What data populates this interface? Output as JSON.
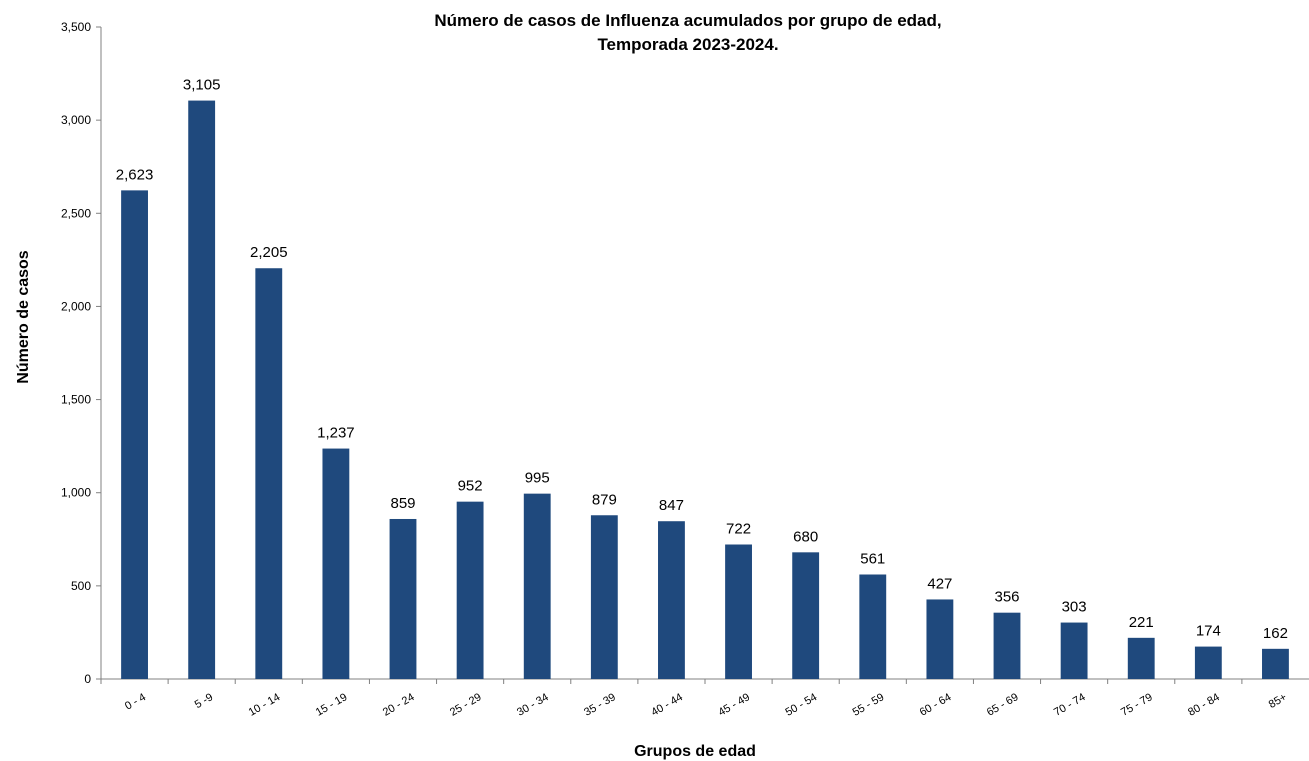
{
  "chart_data": {
    "type": "bar",
    "title": [
      "Número de casos de Influenza acumulados por grupo de edad,",
      "Temporada 2023-2024."
    ],
    "xlabel": "Grupos de edad",
    "ylabel": "Número de casos",
    "ylim": [
      0,
      3500
    ],
    "yticks": [
      0,
      500,
      1000,
      1500,
      2000,
      2500,
      3000,
      3500
    ],
    "ytick_labels": [
      "0",
      "500",
      "1,000",
      "1,500",
      "2,000",
      "2,500",
      "3,000",
      "3,500"
    ],
    "categories": [
      "0 - 4",
      "5 -9",
      "10 - 14",
      "15 - 19",
      "20 - 24",
      "25 - 29",
      "30 - 34",
      "35 - 39",
      "40 - 44",
      "45 - 49",
      "50 - 54",
      "55 - 59",
      "60 - 64",
      "65 - 69",
      "70 - 74",
      "75 - 79",
      "80 - 84",
      "85+"
    ],
    "values": [
      2623,
      3105,
      2205,
      1237,
      859,
      952,
      995,
      879,
      847,
      722,
      680,
      561,
      427,
      356,
      303,
      221,
      174,
      162
    ],
    "value_labels": [
      "2,623",
      "3,105",
      "2,205",
      "1,237",
      "859",
      "952",
      "995",
      "879",
      "847",
      "722",
      "680",
      "561",
      "427",
      "356",
      "303",
      "221",
      "174",
      "162"
    ],
    "bar_color": "#1F497D",
    "grid": false,
    "legend": "none"
  }
}
